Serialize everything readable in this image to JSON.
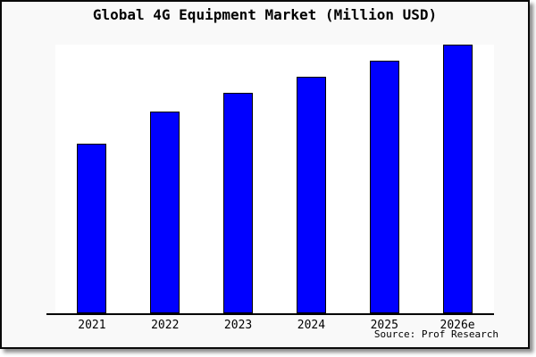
{
  "chart_data": {
    "type": "bar",
    "title": "Global 4G Equipment Market (Million USD)",
    "categories": [
      "2021",
      "2022",
      "2023",
      "2024",
      "2025",
      "2026e"
    ],
    "values": [
      63,
      75,
      82,
      88,
      94,
      100
    ],
    "values_note": "chart shows no y-axis ticks or data labels; values are bar heights normalized so 2026e = 100",
    "xlabel": "",
    "ylabel": "",
    "ylim": [
      0,
      100
    ],
    "grid": false,
    "legend": false,
    "colors": {
      "bar_fill": "#0000ff",
      "bar_edge": "#000000",
      "plot_background": "#ffffff",
      "frame_background": "#f9f9f9",
      "text": "#000000"
    }
  },
  "footer": {
    "source": "Source: Prof Research"
  }
}
